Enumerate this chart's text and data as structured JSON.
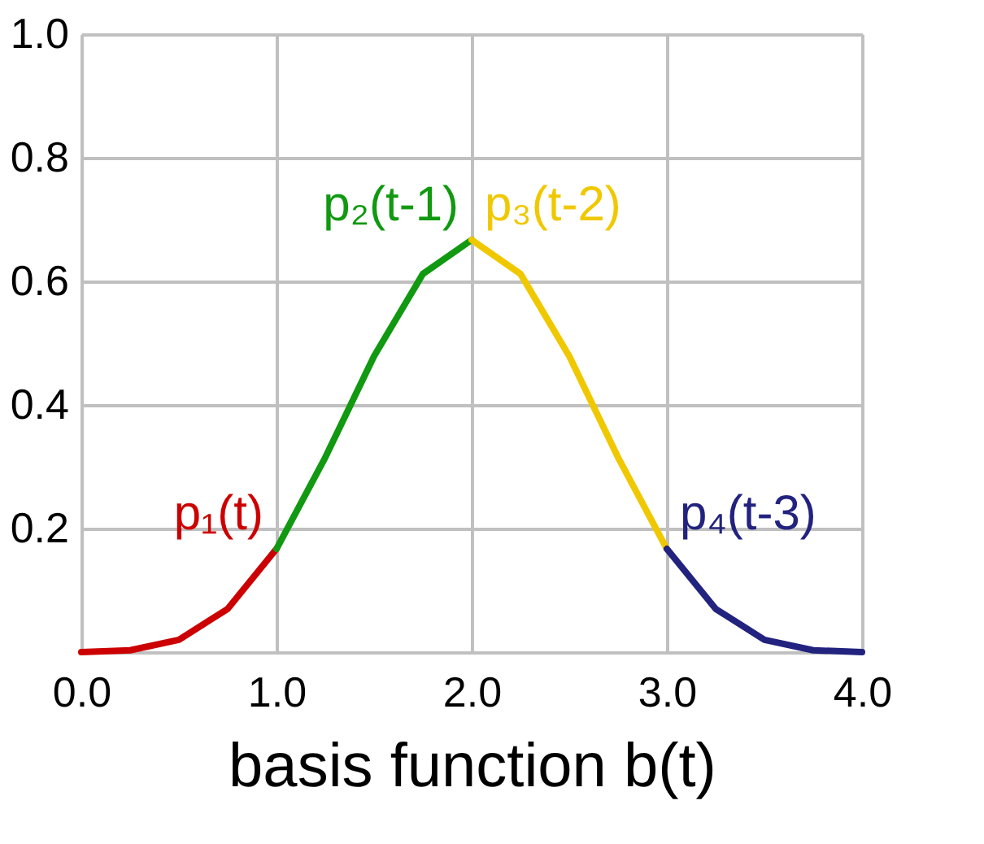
{
  "chart_data": {
    "type": "line",
    "xlabel": "basis function b(t)",
    "xlim": [
      0,
      4
    ],
    "xticks": [
      {
        "value": 0,
        "label": "0.0"
      },
      {
        "value": 1,
        "label": "1.0"
      },
      {
        "value": 2,
        "label": "2.0"
      },
      {
        "value": 3,
        "label": "3.0"
      },
      {
        "value": 4,
        "label": "4.0"
      }
    ],
    "ylim": [
      0,
      1
    ],
    "yticks": [
      {
        "value": 0,
        "label": null
      },
      0.2,
      0.4,
      0.6,
      0.8,
      {
        "value": 1,
        "label": "1.0"
      }
    ],
    "grid": true,
    "legend": false,
    "marker": "none",
    "line_style": "solid",
    "series": [
      {
        "name": "p₁(t)",
        "color": "#cc0000",
        "x": [
          0,
          0.25,
          0.5,
          0.75,
          1
        ],
        "values": [
          0,
          0.003,
          0.02,
          0.07,
          0.167
        ]
      },
      {
        "name": "p₂(t-1)",
        "color": "#119911",
        "x": [
          1,
          1.25,
          1.5,
          1.75,
          2
        ],
        "values": [
          0.167,
          0.315,
          0.479,
          0.612,
          0.667
        ]
      },
      {
        "name": "p₃(t-2)",
        "color": "#f0c800",
        "x": [
          2,
          2.25,
          2.5,
          2.75,
          3
        ],
        "values": [
          0.667,
          0.612,
          0.479,
          0.315,
          0.167
        ]
      },
      {
        "name": "p₄(t-3)",
        "color": "#22227f",
        "x": [
          3,
          3.25,
          3.5,
          3.75,
          4
        ],
        "values": [
          0.167,
          0.07,
          0.02,
          0.003,
          0
        ]
      }
    ]
  }
}
